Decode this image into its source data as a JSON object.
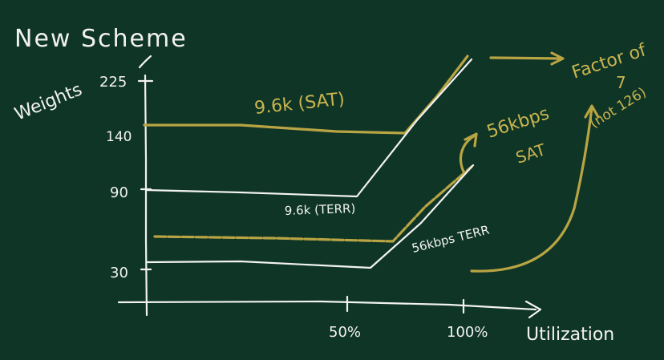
{
  "title": "New Scheme",
  "y_axis_label": "Weights",
  "x_axis_label": "Utilization",
  "y_ticks": [
    "225",
    "140",
    "90",
    "30"
  ],
  "x_ticks": [
    "50%",
    "100%"
  ],
  "annotations": {
    "sat_96k": "9.6k (SAT)",
    "terr_96k": "9.6k (TERR)",
    "sat_56k_line1": "56kbps",
    "sat_56k_line2": "SAT",
    "terr_56k": "56kbps TERR",
    "factor_line1": "Factor of",
    "factor_line2": "7",
    "factor_line3": "(not 126)"
  },
  "colors": {
    "background": "#0f3527",
    "chalk_white": "#f2f2f2",
    "chalk_yellow": "#c9b54e"
  }
}
